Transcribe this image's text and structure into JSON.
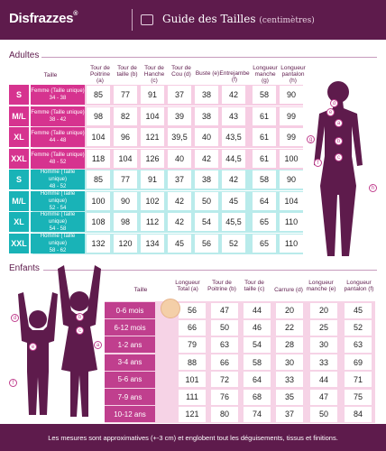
{
  "header": {
    "brand": "Disfrazzes",
    "trademark": "®",
    "title": "Guide des Tailles",
    "subtitle": "(centimètres)"
  },
  "adults": {
    "section_title": "Adultes",
    "columns": [
      "Taille",
      "Tour de Poitrine (a)",
      "Tour de taille (b)",
      "Tour de Hanche (c)",
      "Tour de Cou (d)",
      "Buste (e)",
      "Entrejambe (f)",
      "Longueur manche (g)",
      "Longueur pantalon (h)"
    ],
    "rows": [
      {
        "size": "S",
        "label1": "Femme (Taille unique)",
        "label2": "34 - 38",
        "values": [
          "85",
          "77",
          "91",
          "37",
          "38",
          "42",
          "58",
          "90"
        ]
      },
      {
        "size": "M/L",
        "label1": "Femme (Taille unique)",
        "label2": "38 - 42",
        "values": [
          "98",
          "82",
          "104",
          "39",
          "38",
          "43",
          "61",
          "99"
        ]
      },
      {
        "size": "XL",
        "label1": "Femme (Taille unique)",
        "label2": "44 - 48",
        "values": [
          "104",
          "96",
          "121",
          "39,5",
          "40",
          "43,5",
          "61",
          "99"
        ]
      },
      {
        "size": "XXL",
        "label1": "Femme (Taille unique)",
        "label2": "48 - 52",
        "values": [
          "118",
          "104",
          "126",
          "40",
          "42",
          "44,5",
          "61",
          "100"
        ]
      },
      {
        "size": "S",
        "label1": "Homme (Taille unique)",
        "label2": "48 - 52",
        "values": [
          "85",
          "77",
          "91",
          "37",
          "38",
          "42",
          "58",
          "90"
        ]
      },
      {
        "size": "M/L",
        "label1": "Homme (Taille unique)",
        "label2": "52 - 54",
        "values": [
          "100",
          "90",
          "102",
          "42",
          "50",
          "45",
          "64",
          "104"
        ]
      },
      {
        "size": "XL",
        "label1": "Homme (Taille unique)",
        "label2": "54 - 58",
        "values": [
          "108",
          "98",
          "112",
          "42",
          "54",
          "45,5",
          "65",
          "110"
        ]
      },
      {
        "size": "XXL",
        "label1": "Homme (Taille unique)",
        "label2": "58 - 62",
        "values": [
          "132",
          "120",
          "134",
          "45",
          "56",
          "52",
          "65",
          "110"
        ]
      }
    ]
  },
  "kids": {
    "section_title": "Enfants",
    "columns": [
      "Taille",
      "Longueur Total (a)",
      "Tour de Poitrine (b)",
      "Tour de taille (c)",
      "Carrure (d)",
      "Longueur manche (e)",
      "Longueur pantalon (f)"
    ],
    "rows": [
      {
        "size": "0-6 mois",
        "values": [
          "56",
          "47",
          "44",
          "20",
          "20",
          "45"
        ]
      },
      {
        "size": "6-12 mois",
        "values": [
          "66",
          "50",
          "46",
          "22",
          "25",
          "52"
        ]
      },
      {
        "size": "1-2 ans",
        "values": [
          "79",
          "63",
          "54",
          "28",
          "30",
          "63"
        ]
      },
      {
        "size": "3-4 ans",
        "values": [
          "88",
          "66",
          "58",
          "30",
          "33",
          "69"
        ]
      },
      {
        "size": "5-6 ans",
        "values": [
          "101",
          "72",
          "64",
          "33",
          "44",
          "71"
        ]
      },
      {
        "size": "7-9 ans",
        "values": [
          "111",
          "76",
          "68",
          "35",
          "47",
          "75"
        ]
      },
      {
        "size": "10-12 ans",
        "values": [
          "121",
          "80",
          "74",
          "37",
          "50",
          "84"
        ]
      }
    ]
  },
  "markers": {
    "woman": [
      "d",
      "e",
      "a",
      "b",
      "c",
      "g",
      "f",
      "h"
    ],
    "boy": [
      "d",
      "e",
      "f"
    ],
    "girl": [
      "b",
      "c",
      "a"
    ]
  },
  "footer": {
    "note": "Les mesures sont approximatives (+-3 cm) et englobent tout les déguisements, tissus et finitions."
  },
  "colors": {
    "brand": "#5e1b4c",
    "women_dark": "#d6338f",
    "women_light": "#f6cde3",
    "men_dark": "#19b3b7",
    "men_light": "#b9ebeb",
    "kids_dark": "#c03f8e",
    "kids_light": "#f6d3e6"
  }
}
